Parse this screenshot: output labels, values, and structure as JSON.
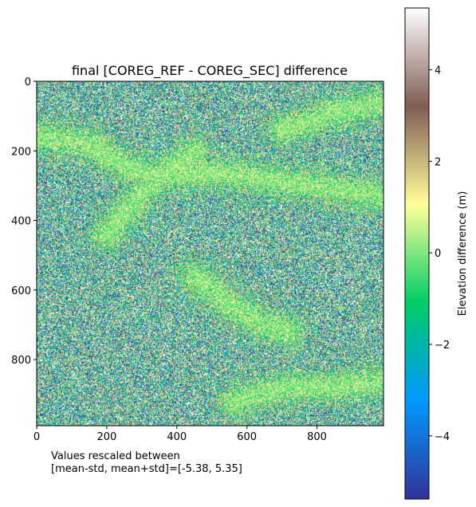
{
  "chart_data": {
    "type": "heatmap",
    "title": "final [COREG_REF - COREG_SEC] difference",
    "x_ticks": [
      0,
      200,
      400,
      600,
      800
    ],
    "y_ticks": [
      0,
      200,
      400,
      600,
      800
    ],
    "xlim": [
      0,
      990
    ],
    "ylim": [
      990,
      0
    ],
    "colorbar": {
      "label": "Elevation difference (m)",
      "ticks": [
        -4,
        -2,
        0,
        2,
        4
      ],
      "range": [
        -5.38,
        5.35
      ],
      "colormap": "terrain",
      "stops": [
        "#333399",
        "#0099ff",
        "#00cc66",
        "#ffff99",
        "#805c54",
        "#ffffff"
      ]
    },
    "annotation_line1": "Values rescaled between",
    "annotation_line2": "[mean-std, mean+std]=[-5.38, 5.35]",
    "highlight_bands": [
      {
        "name": "upper bright ridge",
        "points": [
          [
            0,
            160
          ],
          [
            150,
            180
          ],
          [
            260,
            250
          ],
          [
            350,
            270
          ],
          [
            500,
            260
          ],
          [
            650,
            280
          ],
          [
            800,
            300
          ],
          [
            990,
            330
          ]
        ]
      },
      {
        "name": "diagonal branch",
        "points": [
          [
            200,
            440
          ],
          [
            300,
            320
          ],
          [
            380,
            250
          ],
          [
            450,
            200
          ]
        ]
      },
      {
        "name": "top right streak",
        "points": [
          [
            700,
            140
          ],
          [
            850,
            90
          ],
          [
            990,
            60
          ]
        ]
      },
      {
        "name": "middle streak",
        "points": [
          [
            450,
            560
          ],
          [
            550,
            640
          ],
          [
            650,
            700
          ],
          [
            720,
            720
          ]
        ]
      },
      {
        "name": "lower right streak",
        "points": [
          [
            560,
            920
          ],
          [
            700,
            880
          ],
          [
            850,
            880
          ],
          [
            990,
            860
          ]
        ]
      }
    ]
  }
}
